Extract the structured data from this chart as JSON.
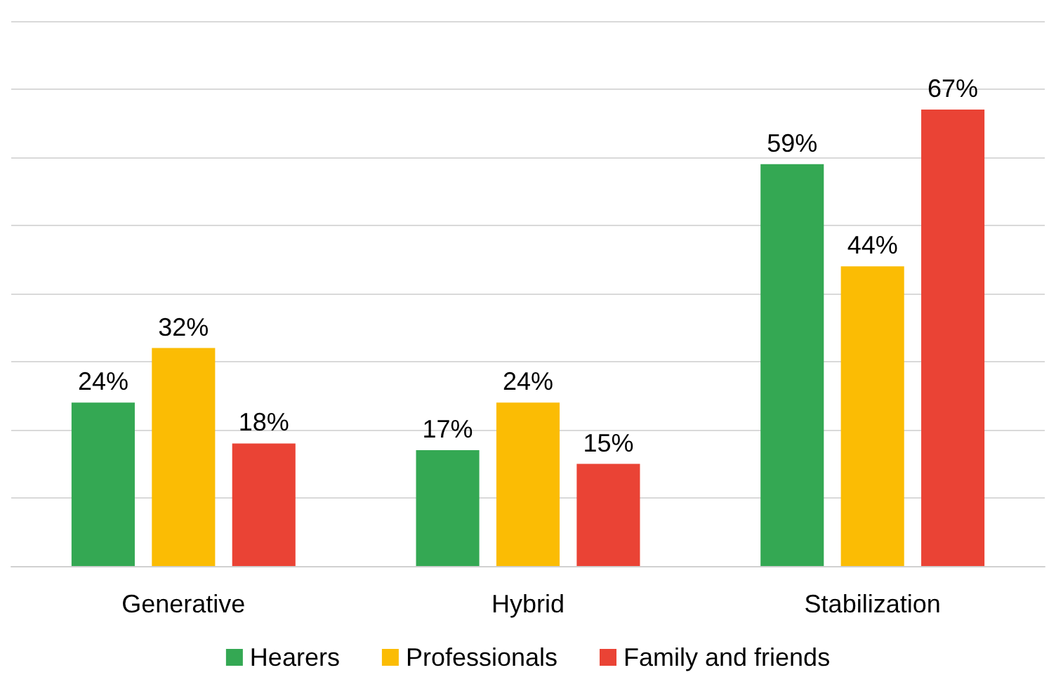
{
  "chart_data": {
    "type": "bar",
    "categories": [
      "Generative",
      "Hybrid",
      "Stabilization"
    ],
    "series": [
      {
        "name": "Hearers",
        "color": "#34a853",
        "values": [
          24,
          17,
          59
        ],
        "value_labels": [
          "24%",
          "17%",
          "59%"
        ]
      },
      {
        "name": "Professionals",
        "color": "#fbbc04",
        "values": [
          32,
          24,
          44
        ],
        "value_labels": [
          "32%",
          "24%",
          "44%"
        ]
      },
      {
        "name": "Family and friends",
        "color": "#ea4335",
        "values": [
          18,
          15,
          67
        ],
        "value_labels": [
          "18%",
          "15%",
          "67%"
        ]
      }
    ],
    "ylim": [
      0,
      80
    ],
    "yticks": [
      {
        "value": 0,
        "label": null
      },
      {
        "value": 10,
        "label": null
      },
      {
        "value": 20,
        "label": null
      },
      {
        "value": 30,
        "label": null
      },
      {
        "value": 40,
        "label": null
      },
      {
        "value": 50,
        "label": null
      },
      {
        "value": 60,
        "label": null
      },
      {
        "value": 70,
        "label": null
      },
      {
        "value": 80,
        "label": null
      }
    ],
    "tick_labels": "x",
    "grid": "y",
    "legend": "bottom"
  }
}
